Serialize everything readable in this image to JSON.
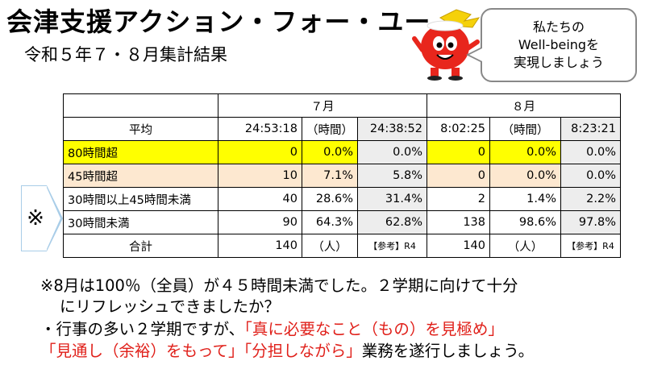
{
  "header": {
    "title": "会津支援アクション・フォー・ユー",
    "subtitle": "令和５年７・８月集計結果"
  },
  "bubble": {
    "line1": "私たちの",
    "line2": "Well-beingを",
    "line3": "実現しましょう"
  },
  "mascot": {
    "icon": "mascot-icon"
  },
  "table": {
    "month_july": "７月",
    "month_august": "８月",
    "rows": [
      {
        "label": "平均",
        "jul_val": "24:53:18",
        "jul_pct": "（時間）",
        "jul_r4": "24:38:52",
        "aug_val": "8:02:25",
        "aug_pct": "（時間）",
        "aug_r4": "8:23:21"
      },
      {
        "label": "80時間超",
        "jul_val": "0",
        "jul_pct": "0.0%",
        "jul_r4": "0.0%",
        "aug_val": "0",
        "aug_pct": "0.0%",
        "aug_r4": "0.0%"
      },
      {
        "label": "45時間超",
        "jul_val": "10",
        "jul_pct": "7.1%",
        "jul_r4": "5.8%",
        "aug_val": "0",
        "aug_pct": "0.0%",
        "aug_r4": "0.0%"
      },
      {
        "label": "30時間以上45時間未満",
        "jul_val": "40",
        "jul_pct": "28.6%",
        "jul_r4": "31.4%",
        "aug_val": "2",
        "aug_pct": "1.4%",
        "aug_r4": "2.2%"
      },
      {
        "label": "30時間未満",
        "jul_val": "90",
        "jul_pct": "64.3%",
        "jul_r4": "62.8%",
        "aug_val": "138",
        "aug_pct": "98.6%",
        "aug_r4": "97.8%"
      },
      {
        "label": "合計",
        "jul_val": "140",
        "jul_pct": "（人）",
        "jul_r4": "【参考】R4",
        "aug_val": "140",
        "aug_pct": "（人）",
        "aug_r4": "【参考】R4"
      }
    ]
  },
  "marker": {
    "text": "※"
  },
  "notes": {
    "line1": "※8月は100％（全員）が４５時間未満でした。２学期に向けて十分",
    "line2": "にリフレッシュできましたか？",
    "line3_prefix": "・行事の多い２学期ですが、",
    "line3_red": "「真に必要なこと（もの）を見極め」",
    "line4_red1": "「見通し（余裕）をもって」",
    "line4_red2": "「分担しながら」",
    "line4_suffix": "業務を遂行しましょう。"
  },
  "colors": {
    "highlight_yellow": "#ffff00",
    "highlight_peach": "#fde8d0",
    "reference_gray": "#ededed",
    "emphasis_red": "#e0201a",
    "marker_blue": "#a9cde8"
  }
}
